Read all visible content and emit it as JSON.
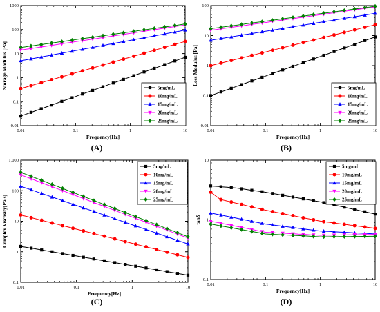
{
  "figure_legend_labels": [
    "5mg/mL",
    "10mg/mL",
    "15mg/mL",
    "20mg/mL",
    "25mg/mL"
  ],
  "colors": {
    "5mg/mL": "#000000",
    "10mg/mL": "#ff0000",
    "15mg/mL": "#0000ff",
    "20mg/mL": "#ff00ff",
    "25mg/mL": "#008000"
  },
  "markers": {
    "5mg/mL": "square",
    "10mg/mL": "circle",
    "15mg/mL": "triangle-up",
    "20mg/mL": "triangle-down",
    "25mg/mL": "diamond"
  },
  "chart_data": [
    {
      "type": "line",
      "panel_label": "(A)",
      "xlabel": "Frequency[Hz]",
      "ylabel": "Storage Modulus [Pa]",
      "xscale": "log",
      "yscale": "log",
      "xlim": [
        0.01,
        10
      ],
      "ylim": [
        0.01,
        1000
      ],
      "xticks": [
        "0.01",
        "0.1",
        "1",
        "10"
      ],
      "yticks": [
        "0.01",
        "0.1",
        "1",
        "10",
        "100",
        "1000"
      ],
      "legend": "bottom-right",
      "series": [
        {
          "name": "5mg/mL",
          "x": [
            0.01,
            10
          ],
          "y": [
            0.025,
            7
          ]
        },
        {
          "name": "10mg/mL",
          "x": [
            0.01,
            10
          ],
          "y": [
            0.35,
            32
          ]
        },
        {
          "name": "15mg/mL",
          "x": [
            0.01,
            10
          ],
          "y": [
            5,
            95
          ]
        },
        {
          "name": "20mg/mL",
          "x": [
            0.01,
            10
          ],
          "y": [
            14,
            155
          ]
        },
        {
          "name": "25mg/mL",
          "x": [
            0.01,
            10
          ],
          "y": [
            18,
            170
          ]
        }
      ]
    },
    {
      "type": "line",
      "panel_label": "(B)",
      "xlabel": "Frequency[Hz]",
      "ylabel": "Loss Modulus [Pa]",
      "xscale": "log",
      "yscale": "log",
      "xlim": [
        0.01,
        10
      ],
      "ylim": [
        0.01,
        100
      ],
      "xticks": [
        "0.01",
        "0.1",
        "1",
        "10"
      ],
      "yticks": [
        "0.01",
        "0.1",
        "1",
        "10",
        "100"
      ],
      "legend": "bottom-right",
      "series": [
        {
          "name": "5mg/mL",
          "x": [
            0.01,
            10
          ],
          "y": [
            0.1,
            9
          ]
        },
        {
          "name": "10mg/mL",
          "x": [
            0.01,
            10
          ],
          "y": [
            1.0,
            23
          ]
        },
        {
          "name": "15mg/mL",
          "x": [
            0.01,
            10
          ],
          "y": [
            7,
            55
          ]
        },
        {
          "name": "20mg/mL",
          "x": [
            0.01,
            10
          ],
          "y": [
            15,
            90
          ]
        },
        {
          "name": "25mg/mL",
          "x": [
            0.01,
            10
          ],
          "y": [
            17,
            95
          ]
        }
      ]
    },
    {
      "type": "line",
      "panel_label": "(C)",
      "xlabel": "Frequency[Hz]",
      "ylabel": "Complex Viscosity[Pa s]",
      "xscale": "log",
      "yscale": "log",
      "xlim": [
        0.01,
        10
      ],
      "ylim": [
        0.1,
        1000
      ],
      "xticks": [
        "0.01",
        "0.1",
        "1",
        "10"
      ],
      "yticks": [
        "0.1",
        "1",
        "10",
        "100",
        "1,000"
      ],
      "legend": "top-right",
      "series": [
        {
          "name": "5mg/mL",
          "x": [
            0.01,
            10
          ],
          "y": [
            1.5,
            0.17
          ]
        },
        {
          "name": "10mg/mL",
          "x": [
            0.01,
            10
          ],
          "y": [
            16,
            0.65
          ]
        },
        {
          "name": "15mg/mL",
          "x": [
            0.01,
            10
          ],
          "y": [
            140,
            1.8
          ]
        },
        {
          "name": "20mg/mL",
          "x": [
            0.01,
            10
          ],
          "y": [
            330,
            2.8
          ]
        },
        {
          "name": "25mg/mL",
          "x": [
            0.01,
            10
          ],
          "y": [
            400,
            3.1
          ]
        }
      ]
    },
    {
      "type": "line",
      "panel_label": "(D)",
      "xlabel": "Frequency[Hz]",
      "ylabel": "tanδ",
      "xscale": "log",
      "yscale": "log",
      "xlim": [
        0.01,
        10
      ],
      "ylim": [
        0.1,
        10
      ],
      "xticks": [
        "0.01",
        "0.1",
        "1",
        "10"
      ],
      "yticks": [
        "0.1",
        "1",
        "10"
      ],
      "legend": "top-right",
      "series": [
        {
          "name": "5mg/mL",
          "x": [
            0.01,
            0.03,
            0.1,
            1,
            10
          ],
          "y": [
            3.7,
            3.4,
            2.9,
            2.0,
            1.25
          ]
        },
        {
          "name": "10mg/mL",
          "x": [
            0.01,
            0.015,
            0.1,
            1,
            10
          ],
          "y": [
            2.9,
            2.2,
            1.45,
            0.95,
            0.72
          ]
        },
        {
          "name": "15mg/mL",
          "x": [
            0.01,
            0.1,
            1,
            10
          ],
          "y": [
            1.3,
            0.85,
            0.65,
            0.58
          ]
        },
        {
          "name": "20mg/mL",
          "x": [
            0.01,
            0.1,
            1,
            10
          ],
          "y": [
            0.95,
            0.62,
            0.55,
            0.57
          ]
        },
        {
          "name": "25mg/mL",
          "x": [
            0.01,
            0.1,
            1,
            10
          ],
          "y": [
            0.85,
            0.58,
            0.52,
            0.53
          ]
        }
      ]
    }
  ]
}
